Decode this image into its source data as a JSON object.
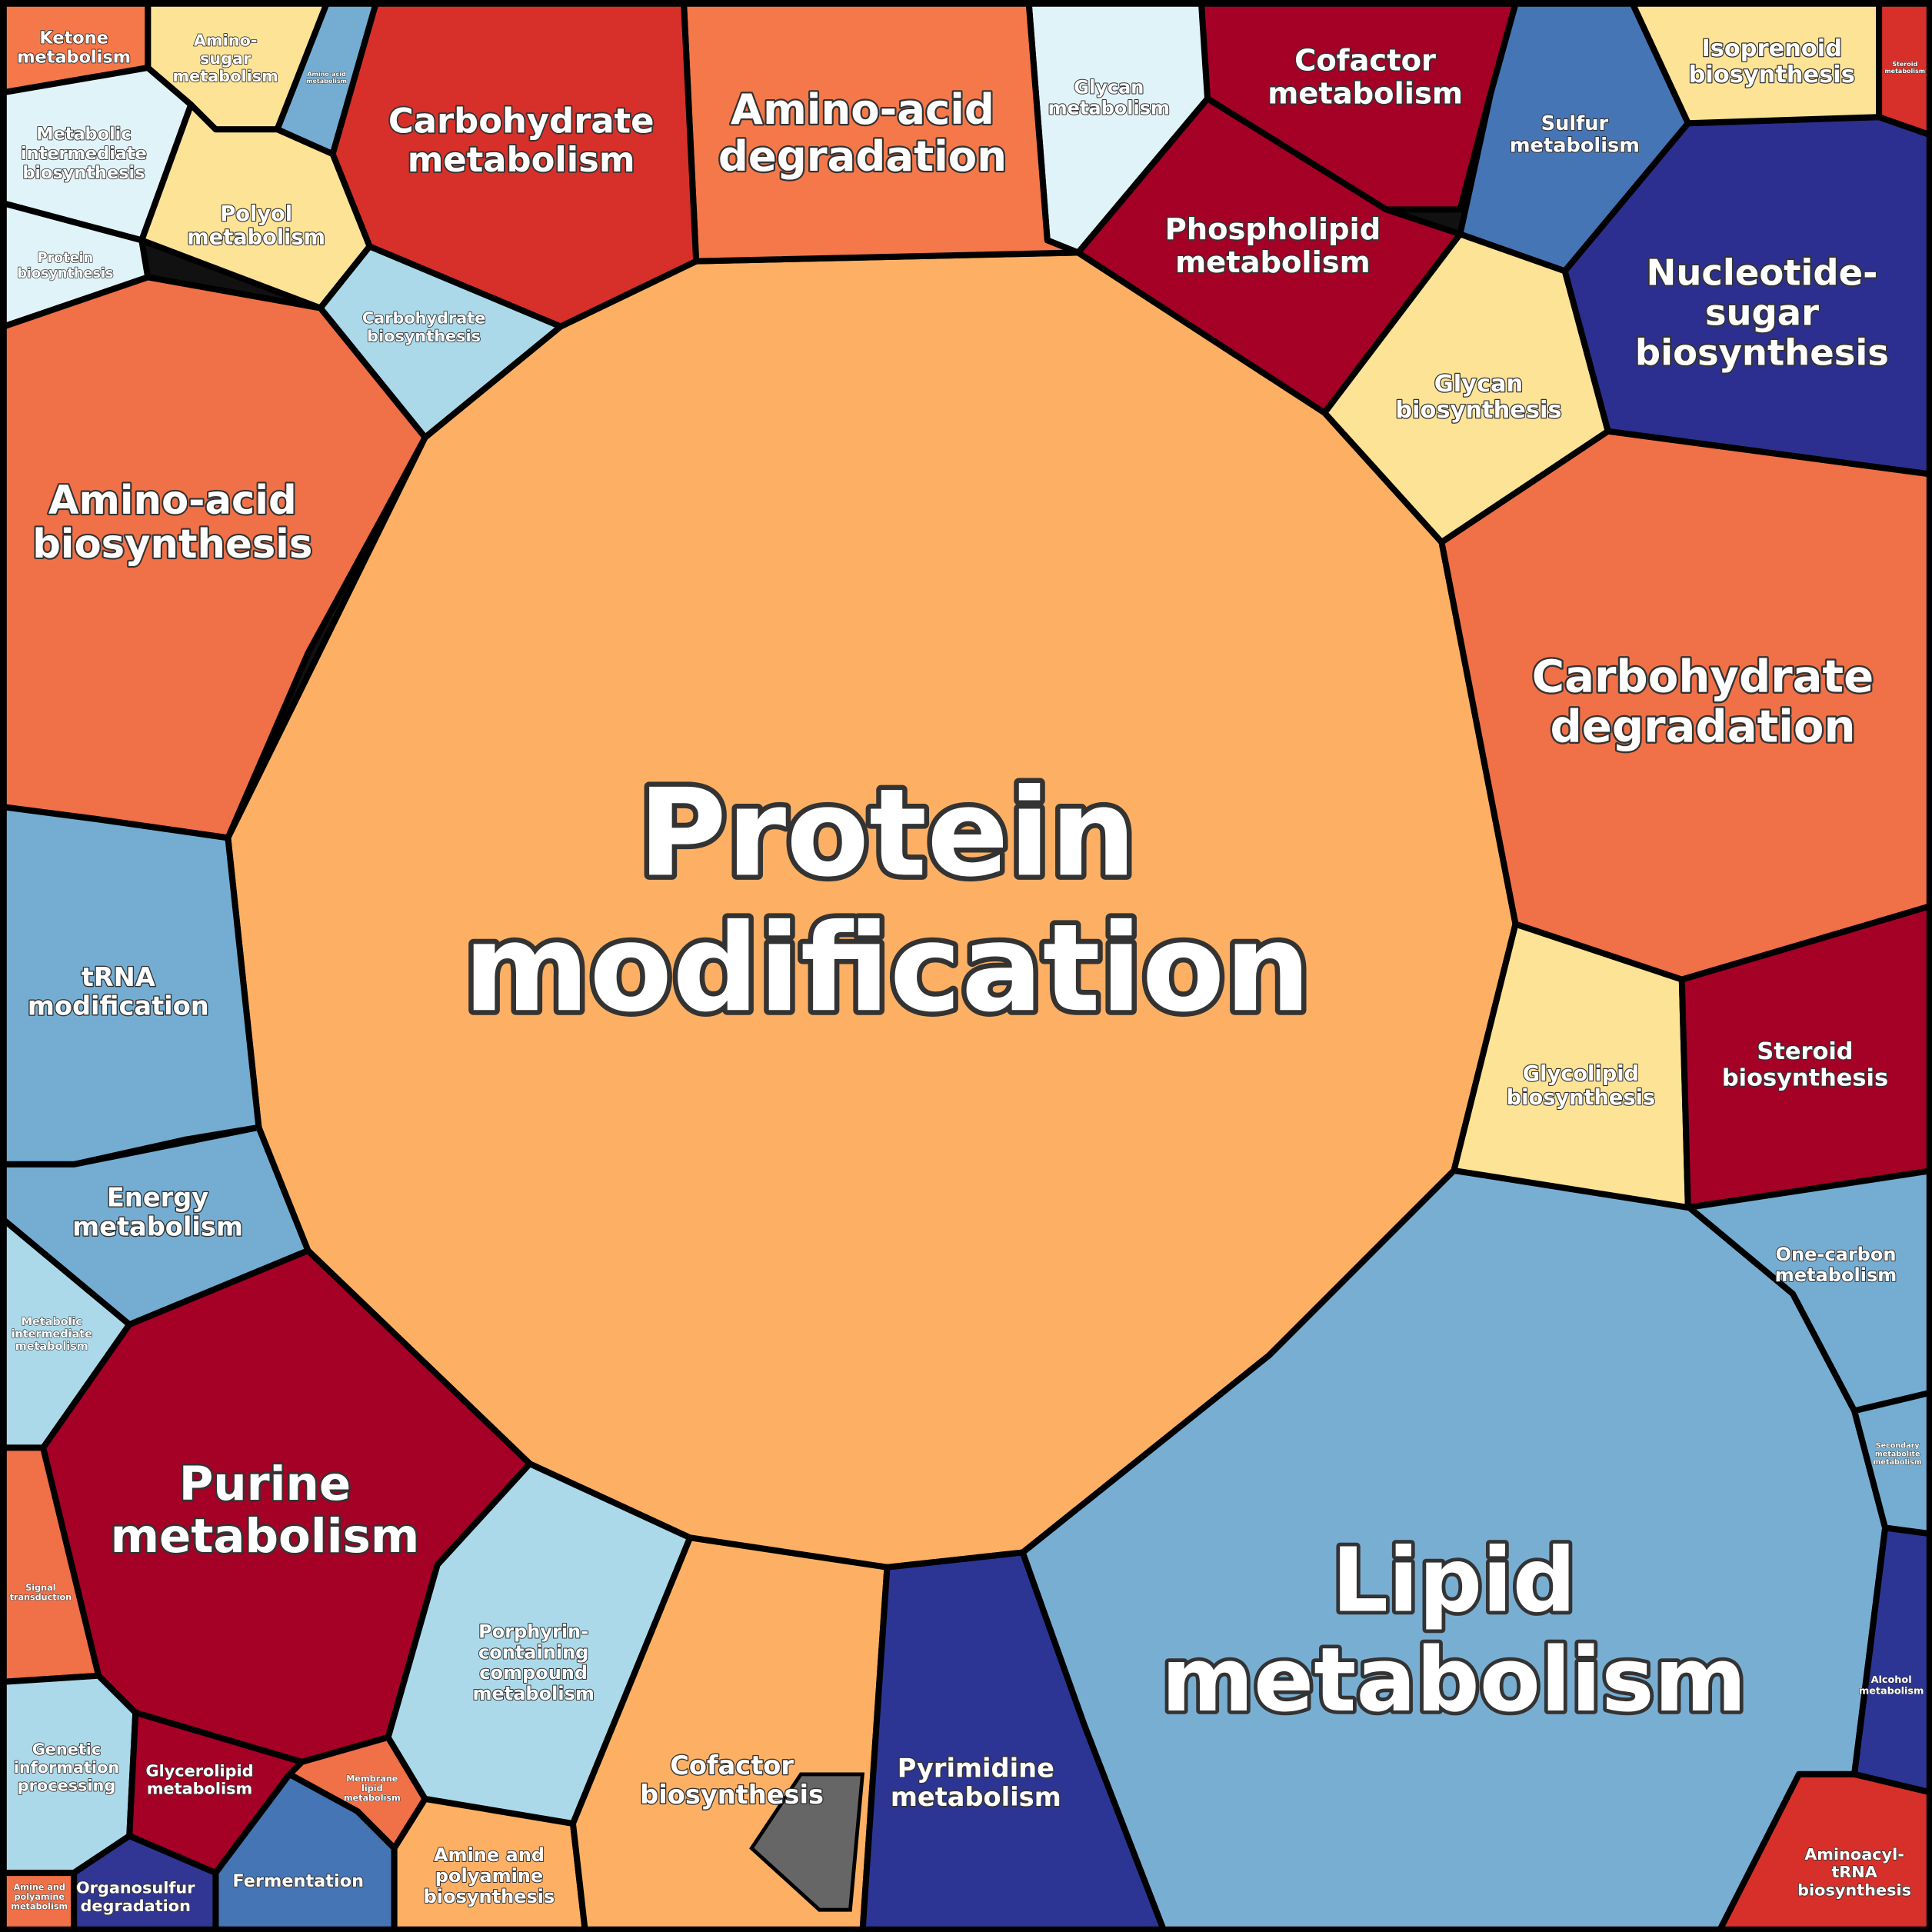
{
  "regions": [
    {
      "label": [
        "Protein",
        "modification"
      ],
      "color": "#fdb064"
    },
    {
      "label": [
        "Lipid",
        "metabolism"
      ],
      "color": "#79aed3"
    },
    {
      "label": [
        "Carbohydrate",
        "degradation"
      ],
      "color": "#f07047"
    },
    {
      "label": [
        "Nucleotide-",
        "sugar",
        "biosynthesis"
      ],
      "color": "#2c2f8f"
    },
    {
      "label": [
        "Isoprenoid",
        "biosynthesis"
      ],
      "color": "#fde396"
    },
    {
      "label": [
        "Steroid",
        "metabolism"
      ],
      "color": "#d7302a"
    },
    {
      "label": [
        "Sulfur",
        "metabolism"
      ],
      "color": "#4575b4"
    },
    {
      "label": [
        "Cofactor",
        "metabolism"
      ],
      "color": "#a50026"
    },
    {
      "label": [
        "Phospholipid",
        "metabolism"
      ],
      "color": "#a50026"
    },
    {
      "label": [
        "Glycan",
        "metabolism"
      ],
      "color": "#e0f3f8"
    },
    {
      "label": [
        "Glycan",
        "biosynthesis"
      ],
      "color": "#fde396"
    },
    {
      "label": [
        "Amino-acid",
        "degradation"
      ],
      "color": "#f4784a"
    },
    {
      "label": [
        "Carbohydrate",
        "metabolism"
      ],
      "color": "#d7302a"
    },
    {
      "label": [
        "Amino-acid",
        "metabolism"
      ],
      "color": "#74add1"
    },
    {
      "label": [
        "Amino-",
        "sugar",
        "metabolism"
      ],
      "color": "#fde396"
    },
    {
      "label": [
        "Ketone",
        "metabolism"
      ],
      "color": "#f4784a"
    },
    {
      "label": [
        "Metabolic",
        "intermediate",
        "biosynthesis"
      ],
      "color": "#e0f3f8"
    },
    {
      "label": [
        "Polyol",
        "metabolism"
      ],
      "color": "#fde396"
    },
    {
      "label": [
        "Protein",
        "biosynthesis"
      ],
      "color": "#e0f3f8"
    },
    {
      "label": [
        "Carbohydrate",
        "biosynthesis"
      ],
      "color": "#abd9e9"
    },
    {
      "label": [
        "Amino-acid",
        "biosynthesis"
      ],
      "color": "#f07047"
    },
    {
      "label": [
        "tRNA",
        "modification"
      ],
      "color": "#74add1"
    },
    {
      "label": [
        "Energy",
        "metabolism"
      ],
      "color": "#74add1"
    },
    {
      "label": [
        "Metabolic",
        "intermediate",
        "metabolism"
      ],
      "color": "#abd9e9"
    },
    {
      "label": [
        "Purine",
        "metabolism"
      ],
      "color": "#a50026"
    },
    {
      "label": [
        "Signal",
        "transduction"
      ],
      "color": "#f07047"
    },
    {
      "label": [
        "Genetic",
        "information",
        "processing"
      ],
      "color": "#abd9e9"
    },
    {
      "label": [
        "Glycerolipid",
        "metabolism"
      ],
      "color": "#a50026"
    },
    {
      "label": [
        "Membrane",
        "lipid",
        "metabolism"
      ],
      "color": "#f07047"
    },
    {
      "label": [
        "Fermentation"
      ],
      "color": "#4575b4"
    },
    {
      "label": [
        "Organosulfur",
        "degradation"
      ],
      "color": "#313695"
    },
    {
      "label": [
        "Amine and",
        "polyamine",
        "metabolism"
      ],
      "color": "#f07047"
    },
    {
      "label": [
        "Porphyrin-",
        "containing",
        "compound",
        "metabolism"
      ],
      "color": "#abd9e9"
    },
    {
      "label": [
        "Amine and",
        "polyamine",
        "biosynthesis"
      ],
      "color": "#fdb064"
    },
    {
      "label": [
        "Cofactor",
        "biosynthesis"
      ],
      "color": "#fdb064"
    },
    {
      "label": [
        "Pyrimidine",
        "metabolism"
      ],
      "color": "#2c3593"
    },
    {
      "label": [
        "One-carbon",
        "metabolism"
      ],
      "color": "#74add1"
    },
    {
      "label": [
        "Secondary",
        "metabolite",
        "metabolism"
      ],
      "color": "#74add1"
    },
    {
      "label": [
        "Alcohol",
        "metabolism"
      ],
      "color": "#2c3593"
    },
    {
      "label": [
        "Aminoacyl-",
        "tRNA",
        "biosynthesis"
      ],
      "color": "#d7302a"
    },
    {
      "label": [
        "Glycolipid",
        "biosynthesis"
      ],
      "color": "#fde396"
    },
    {
      "label": [
        "Steroid",
        "biosynthesis"
      ],
      "color": "#a50026"
    }
  ]
}
